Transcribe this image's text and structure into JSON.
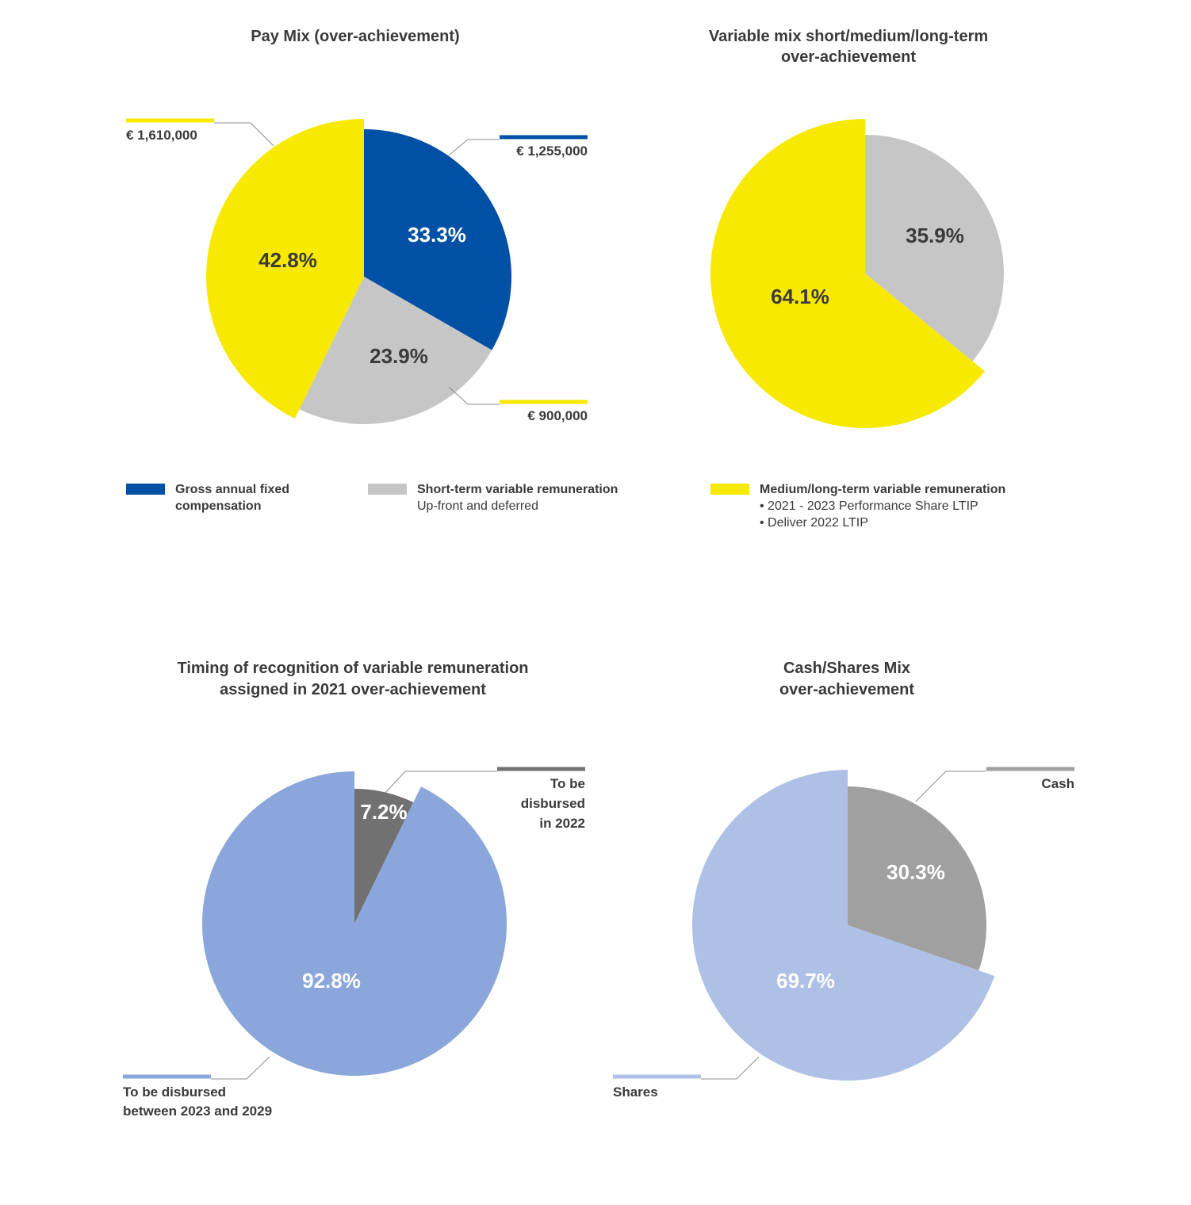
{
  "colors": {
    "blue": "#0051a5",
    "yellow": "#f8e900",
    "light_gray": "#c6c6c6",
    "dark_gray": "#727171",
    "mid_gray": "#a0a0a0",
    "periwinkle": "#8aa6da",
    "light_periwinkle": "#aec0e6",
    "leader": "#8c8c8c"
  },
  "chart_data": [
    {
      "type": "pie",
      "title": "Pay Mix (over-achievement)",
      "slices": [
        {
          "label": "Gross annual fixed compensation",
          "percent": 33.3,
          "value_label": "€ 1,255,000",
          "color": "#0051a5",
          "text_color": "#ffffff"
        },
        {
          "label": "Short-term variable remuneration",
          "percent": 23.9,
          "value_label": "€ 900,000",
          "color": "#c6c6c6",
          "text_color": "#3a3a3a"
        },
        {
          "label": "Medium/long-term variable remuneration",
          "percent": 42.8,
          "value_label": "€ 1,610,000",
          "color": "#f8e900",
          "text_color": "#3a3a3a",
          "exploded": true
        }
      ]
    },
    {
      "type": "pie",
      "title": "Variable mix short/medium/long-term over-achievement",
      "slices": [
        {
          "label": "Short-term variable remuneration",
          "percent": 35.9,
          "color": "#c6c6c6",
          "text_color": "#3a3a3a"
        },
        {
          "label": "Medium/long-term variable remuneration",
          "percent": 64.1,
          "color": "#f8e900",
          "text_color": "#3a3a3a",
          "exploded": true
        }
      ]
    },
    {
      "type": "pie",
      "title": "Timing of recognition of variable remuneration assigned in 2021 over-achievement",
      "slices": [
        {
          "label": "To be disbursed in 2022",
          "percent": 7.2,
          "color": "#727171",
          "text_color": "#ffffff"
        },
        {
          "label": "To be  disbursed between 2023 and 2029",
          "percent": 92.8,
          "color": "#8aa6da",
          "text_color": "#ffffff",
          "exploded": true
        }
      ]
    },
    {
      "type": "pie",
      "title": "Cash/Shares Mix over-achievement",
      "slices": [
        {
          "label": "Cash",
          "percent": 30.3,
          "color": "#a0a0a0",
          "text_color": "#ffffff"
        },
        {
          "label": "Shares",
          "percent": 69.7,
          "color": "#aec0e6",
          "text_color": "#ffffff",
          "exploded": true
        }
      ]
    }
  ],
  "titles": {
    "pay_mix": [
      "Pay Mix (over-achievement)"
    ],
    "variable_mix": [
      "Variable mix short/medium/long-term",
      "over-achievement"
    ],
    "timing": [
      "Timing of recognition of variable remuneration",
      "assigned in 2021 over-achievement"
    ],
    "cash_shares": [
      "Cash/Shares Mix",
      "over-achievement"
    ]
  },
  "percent_labels": {
    "pay_fixed": "33.3%",
    "pay_short": "23.9%",
    "pay_long": "42.8%",
    "var_short": "35.9%",
    "var_long": "64.1%",
    "timing_2022": "7.2%",
    "timing_later": "92.8%",
    "cash": "30.3%",
    "shares": "69.7%"
  },
  "callouts": {
    "pay_long_value": "€ 1,610,000",
    "pay_fixed_value": "€ 1,255,000",
    "pay_short_value": "€ 900,000",
    "timing_2022": [
      "To be",
      "disbursed",
      "in 2022"
    ],
    "timing_later": [
      "To be  disbursed",
      "between 2023 and 2029"
    ],
    "cash": "Cash",
    "shares": "Shares"
  },
  "legend": {
    "fixed": {
      "title": "Gross annual fixed",
      "title2": "compensation"
    },
    "short": {
      "title": "Short-term variable remuneration",
      "note": "Up-front and deferred"
    },
    "long": {
      "title": "Medium/long-term variable remuneration",
      "items": [
        "• 2021 - 2023 Performance Share LTIP",
        "• Deliver 2022 LTIP"
      ]
    }
  }
}
